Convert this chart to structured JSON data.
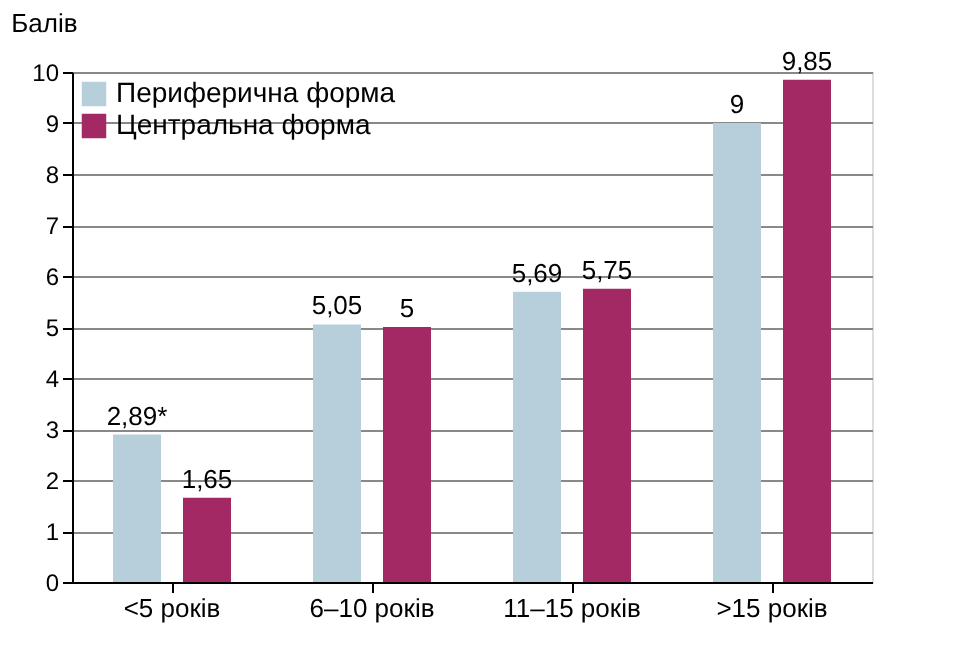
{
  "chart_data": {
    "type": "bar",
    "ylabel": "Балів",
    "categories": [
      "<5 років",
      "6–10 років",
      "11–15 років",
      ">15 років"
    ],
    "series": [
      {
        "name": "Периферична форма",
        "color": "#b7cfdb",
        "values": [
          2.89,
          5.05,
          5.69,
          9
        ],
        "value_labels": [
          "2,89*",
          "5,05",
          "5,69",
          "9"
        ]
      },
      {
        "name": "Центральна форма",
        "color": "#a32965",
        "values": [
          1.65,
          5,
          5.75,
          9.85
        ],
        "value_labels": [
          "1,65",
          "5",
          "5,75",
          "9,85"
        ]
      }
    ],
    "ylim": [
      0,
      10
    ],
    "yticks": [
      0,
      1,
      2,
      3,
      4,
      5,
      6,
      7,
      8,
      9,
      10
    ],
    "grid": "y",
    "legend": "top left"
  }
}
